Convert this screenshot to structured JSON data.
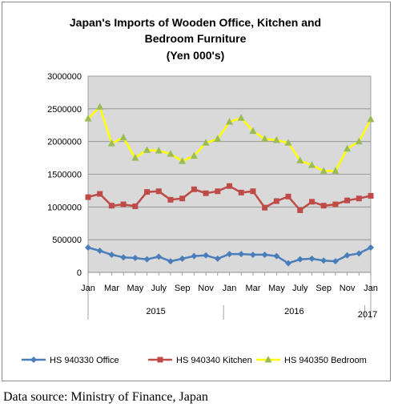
{
  "chart_data": {
    "type": "line",
    "title_lines": [
      "Japan's Imports of  Wooden  Office, Kitchen and",
      "Bedroom Furniture",
      "(Yen 000's)"
    ],
    "xlabel": "",
    "ylabel": "",
    "ylim": [
      0,
      3000000
    ],
    "yticks": [
      "0",
      "500000",
      "1000000",
      "1500000",
      "2000000",
      "2500000",
      "3000000"
    ],
    "month_labels": [
      "Jan",
      "Mar",
      "May",
      "July",
      "Sep",
      "Nov",
      "Jan",
      "Mar",
      "May",
      "July",
      "Sep",
      "Nov",
      "Jan"
    ],
    "year_labels": [
      "2015",
      "2016",
      "2017"
    ],
    "months": [
      "Jan 2015",
      "Feb 2015",
      "Mar 2015",
      "Apr 2015",
      "May 2015",
      "Jun 2015",
      "Jul 2015",
      "Aug 2015",
      "Sep 2015",
      "Oct 2015",
      "Nov 2015",
      "Dec 2015",
      "Jan 2016",
      "Feb 2016",
      "Mar 2016",
      "Apr 2016",
      "May 2016",
      "Jun 2016",
      "Jul 2016",
      "Aug 2016",
      "Sep 2016",
      "Oct 2016",
      "Nov 2016",
      "Dec 2016",
      "Jan 2017"
    ],
    "grid": true,
    "legend_position": "bottom",
    "series": [
      {
        "name": "HS 940330 Office",
        "color": "#4a7ebb",
        "marker": "diamond",
        "values": [
          380000,
          330000,
          270000,
          230000,
          220000,
          200000,
          240000,
          170000,
          210000,
          250000,
          260000,
          210000,
          280000,
          280000,
          270000,
          270000,
          250000,
          140000,
          200000,
          210000,
          180000,
          170000,
          260000,
          290000,
          380000
        ]
      },
      {
        "name": "HS 940340 Kitchen",
        "color": "#be4b48",
        "marker": "square",
        "values": [
          1150000,
          1200000,
          1020000,
          1040000,
          1010000,
          1230000,
          1240000,
          1110000,
          1130000,
          1270000,
          1210000,
          1240000,
          1320000,
          1220000,
          1240000,
          990000,
          1090000,
          1160000,
          950000,
          1080000,
          1020000,
          1040000,
          1100000,
          1130000,
          1170000
        ]
      },
      {
        "name": "HS 940350 Bedroom",
        "color": "#ffff00",
        "marker": "triangle",
        "marker_color": "#9bbb59",
        "values": [
          2350000,
          2530000,
          1970000,
          2060000,
          1750000,
          1870000,
          1860000,
          1810000,
          1700000,
          1780000,
          1980000,
          2040000,
          2300000,
          2360000,
          2160000,
          2040000,
          2020000,
          1980000,
          1710000,
          1640000,
          1550000,
          1550000,
          1890000,
          2000000,
          2340000
        ]
      }
    ]
  },
  "source_text": "Data source: Ministry of Finance, Japan"
}
